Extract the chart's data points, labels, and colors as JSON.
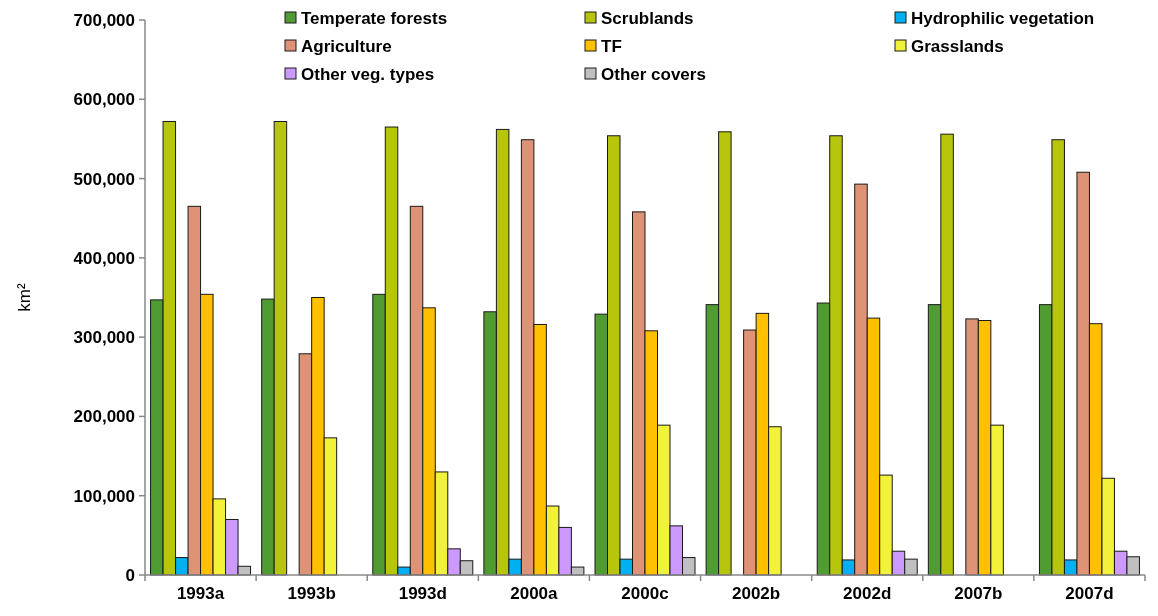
{
  "chart_data": {
    "type": "bar",
    "ylabel": "km²",
    "categories": [
      "1993a",
      "1993b",
      "1993d",
      "2000a",
      "2000c",
      "2002b",
      "2002d",
      "2007b",
      "2007d"
    ],
    "series": [
      {
        "name": "Temperate forests",
        "color": "#509b32",
        "values": [
          347000,
          348000,
          354000,
          332000,
          329000,
          341000,
          343000,
          341000,
          341000
        ]
      },
      {
        "name": "Scrublands",
        "color": "#b7c60c",
        "values": [
          572000,
          572000,
          565000,
          562000,
          554000,
          559000,
          554000,
          556000,
          549000
        ]
      },
      {
        "name": "Hydrophilic vegetation",
        "color": "#00b0f0",
        "values": [
          22000,
          null,
          10000,
          20000,
          20000,
          null,
          19000,
          null,
          19000
        ]
      },
      {
        "name": "Agriculture",
        "color": "#de9276",
        "values": [
          465000,
          279000,
          465000,
          549000,
          458000,
          309000,
          493000,
          323000,
          508000
        ]
      },
      {
        "name": "TF",
        "color": "#ffc000",
        "values": [
          354000,
          350000,
          337000,
          316000,
          308000,
          330000,
          324000,
          321000,
          317000
        ]
      },
      {
        "name": "Grasslands",
        "color": "#f2f23a",
        "values": [
          96000,
          173000,
          130000,
          87000,
          189000,
          187000,
          126000,
          189000,
          122000
        ]
      },
      {
        "name": "Other veg. types",
        "color": "#cc99ff",
        "values": [
          70000,
          null,
          33000,
          60000,
          62000,
          null,
          30000,
          null,
          30000
        ]
      },
      {
        "name": "Other covers",
        "color": "#c0c0c0",
        "values": [
          11000,
          null,
          18000,
          10000,
          22000,
          null,
          20000,
          null,
          23000
        ]
      }
    ],
    "ylim": [
      0,
      700000
    ],
    "yticks": [
      {
        "value": 0,
        "label": "0"
      },
      {
        "value": 100000,
        "label": "100,000"
      },
      {
        "value": 200000,
        "label": "200,000"
      },
      {
        "value": 300000,
        "label": "300,000"
      },
      {
        "value": 400000,
        "label": "400,000"
      },
      {
        "value": 500000,
        "label": "500,000"
      },
      {
        "value": 600000,
        "label": "600,000"
      },
      {
        "value": 700000,
        "label": "700,000"
      }
    ],
    "grid": false,
    "legend": "top right"
  }
}
